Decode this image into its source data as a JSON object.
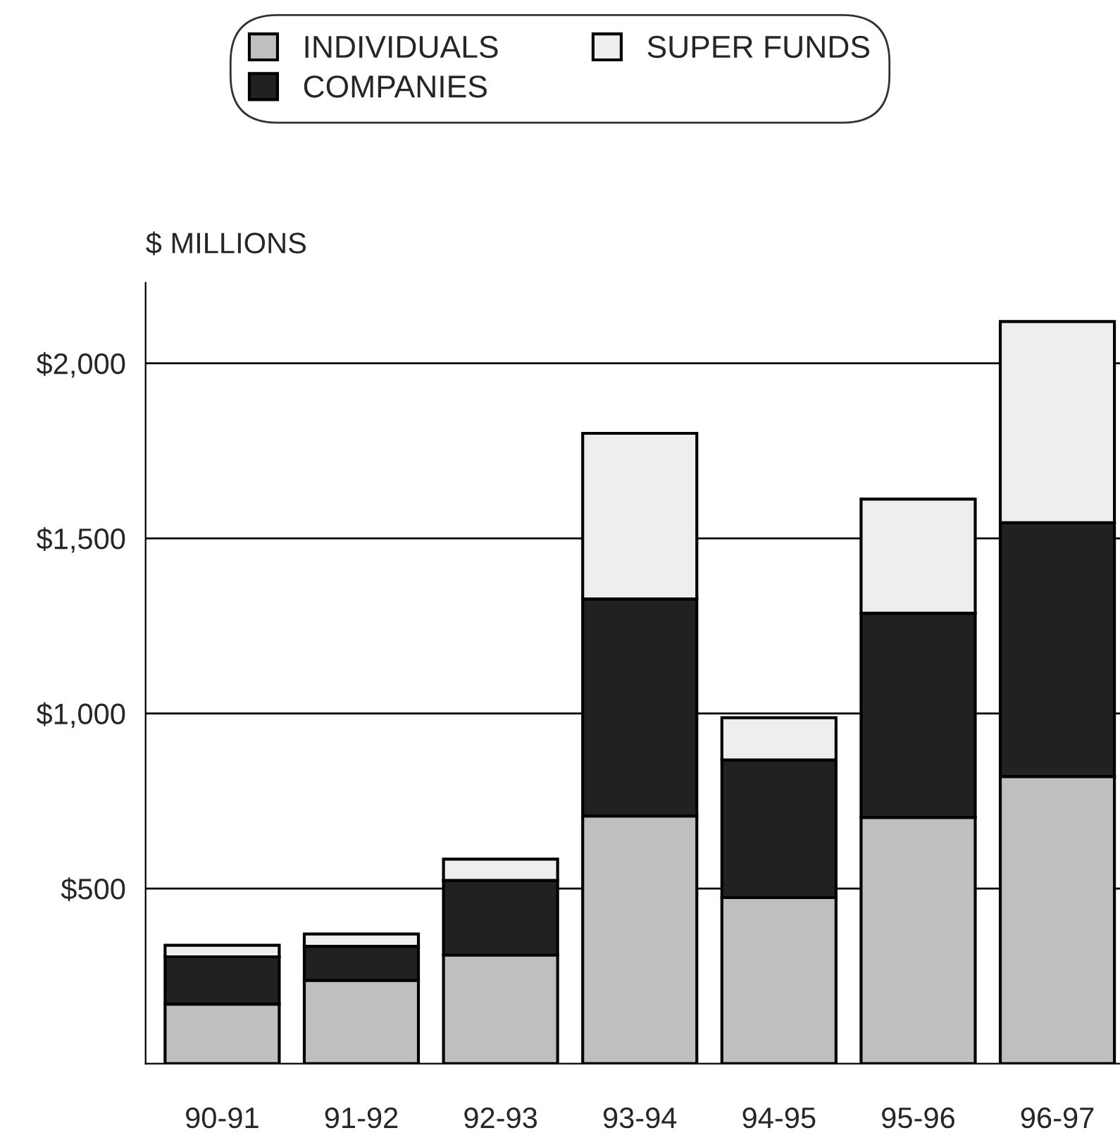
{
  "chart_data": {
    "type": "bar",
    "stacked": true,
    "ylabel": "$ MILLIONS",
    "categories": [
      "90-91",
      "91-92",
      "92-93",
      "93-94",
      "94-95",
      "95-96",
      "96-97"
    ],
    "series": [
      {
        "name": "INDIVIDUALS",
        "color": "#bfbfbf",
        "values": [
          170,
          238,
          310,
          707,
          474,
          703,
          820
        ]
      },
      {
        "name": "COMPANIES",
        "color": "#212121",
        "values": [
          135,
          97,
          213,
          620,
          393,
          583,
          725
        ]
      },
      {
        "name": "SUPER FUNDS",
        "color": "#eeeeee",
        "values": [
          33,
          35,
          61,
          473,
          121,
          326,
          574
        ]
      }
    ],
    "ylim": [
      0,
      2230
    ],
    "yticks": [
      {
        "value": 500,
        "label": "$500"
      },
      {
        "value": 1000,
        "label": "$1,000"
      },
      {
        "value": 1500,
        "label": "$1,500"
      },
      {
        "value": 2000,
        "label": "$2,000"
      }
    ],
    "grid": "y",
    "legend": "top"
  }
}
